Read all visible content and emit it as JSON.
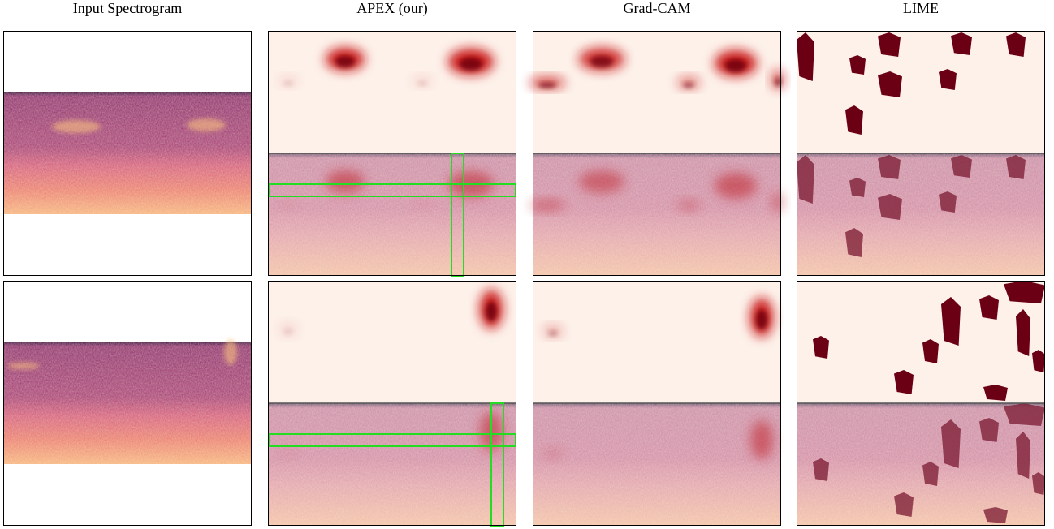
{
  "headers": [
    "Input Spectrogram",
    "APEX (our)",
    "Grad-CAM",
    "LIME"
  ]
}
